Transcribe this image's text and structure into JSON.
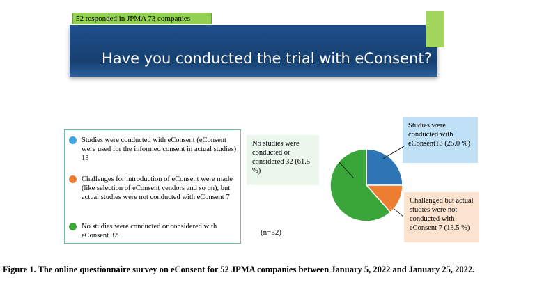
{
  "note": "52 responded in JPMA 73 companies",
  "banner_title": "Have you conducted the trial with eConsent?",
  "legend": [
    {
      "text": "Studies were conducted with eConsent (eConsent were used for the informed consent in actual studies) 13",
      "color": "#3da5e0"
    },
    {
      "text": "Challenges for introduction of eConsent were made (like selection of eConsent vendors and so on), but actual studies were not conducted with eConsent 7",
      "color": "#ef7d31"
    },
    {
      "text": "No studies were conducted or considered with eConsent 32",
      "color": "#3aab3a"
    }
  ],
  "callouts": {
    "none": "No studies were conducted or considered 32 (61.5 %)",
    "studies": "Studies were conducted with eConsent13 (25.0 %)",
    "challenged": "Challenged but actual studies were not conducted with eConsent 7 (13.5 %)"
  },
  "n_label": "(n=52)",
  "caption": "Figure 1. The online questionnaire survey on eConsent for 52 JPMA companies between January 5, 2022 and January 25, 2022.",
  "chart_data": {
    "type": "pie",
    "slices": [
      {
        "label": "Studies were conducted with eConsent",
        "value": 13,
        "percent": 25.0,
        "color": "#2e75b6"
      },
      {
        "label": "Challenged but actual studies were not conducted with eConsent",
        "value": 7,
        "percent": 13.5,
        "color": "#ed7d31"
      },
      {
        "label": "No studies were conducted or considered",
        "value": 32,
        "percent": 61.5,
        "color": "#3aa63a"
      }
    ],
    "total": 52
  }
}
